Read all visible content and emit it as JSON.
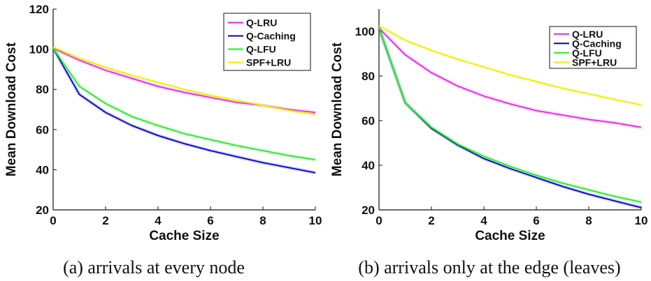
{
  "chart_data": [
    {
      "type": "line",
      "xlabel": "Cache Size",
      "ylabel": "Mean Download Cost",
      "caption": "(a) arrivals at every node",
      "xlim": [
        0,
        10
      ],
      "ylim": [
        20,
        120
      ],
      "xticks": [
        "0",
        "2",
        "4",
        "6",
        "8",
        "10"
      ],
      "yticks": [
        "20",
        "40",
        "60",
        "80",
        "100",
        "120"
      ],
      "legend_position": "top-right",
      "grid": false,
      "x": [
        0,
        1,
        2,
        3,
        4,
        5,
        6,
        7,
        8,
        9,
        10
      ],
      "series": [
        {
          "name": "Q-LRU",
          "color": "#ee22ee",
          "values": [
            100.5,
            94.5,
            89.5,
            85.5,
            81.5,
            78.5,
            76,
            73.5,
            72,
            70,
            68.5
          ]
        },
        {
          "name": "Q-Caching",
          "color": "#0000cc",
          "values": [
            100.5,
            77.5,
            68.5,
            62,
            57,
            53,
            49.5,
            46.5,
            43.5,
            41,
            38.5
          ]
        },
        {
          "name": "Q-LFU",
          "color": "#22ee22",
          "values": [
            100.5,
            81.5,
            73,
            66.5,
            62,
            58,
            55,
            52,
            49.5,
            47,
            45
          ]
        },
        {
          "name": "SPF+LRU",
          "color": "#eeee00",
          "values": [
            101,
            95.5,
            91,
            87,
            83.5,
            80,
            77,
            74.5,
            72,
            69.5,
            67.5
          ]
        }
      ]
    },
    {
      "type": "line",
      "xlabel": "Cache Size",
      "ylabel": "Mean Download Cost",
      "caption": "(b) arrivals only at the edge (leaves)",
      "xlim": [
        0,
        10
      ],
      "ylim": [
        20,
        110
      ],
      "xticks": [
        "0",
        "2",
        "4",
        "6",
        "8",
        "10"
      ],
      "yticks": [
        "20",
        "40",
        "60",
        "80",
        "100"
      ],
      "legend_position": "top-right",
      "grid": false,
      "x": [
        0,
        1,
        2,
        3,
        4,
        5,
        6,
        7,
        8,
        9,
        10
      ],
      "series": [
        {
          "name": "Q-LRU",
          "color": "#ee22ee",
          "values": [
            101.5,
            89.5,
            81.5,
            75.5,
            71,
            67.5,
            64.5,
            62.5,
            60.5,
            59,
            57
          ]
        },
        {
          "name": "Q-Caching",
          "color": "#0000cc",
          "values": [
            101.5,
            68,
            56.5,
            49,
            43,
            38.5,
            34.5,
            30.5,
            27,
            24,
            21
          ]
        },
        {
          "name": "Q-LFU",
          "color": "#22ee22",
          "values": [
            101.5,
            68,
            57,
            49.5,
            44,
            39.5,
            35.5,
            32,
            29,
            26,
            23.5
          ]
        },
        {
          "name": "SPF+LRU",
          "color": "#eeee00",
          "values": [
            102.5,
            96,
            91.5,
            87.5,
            84,
            80.5,
            77.5,
            74.5,
            72,
            69.5,
            67
          ]
        }
      ]
    }
  ]
}
